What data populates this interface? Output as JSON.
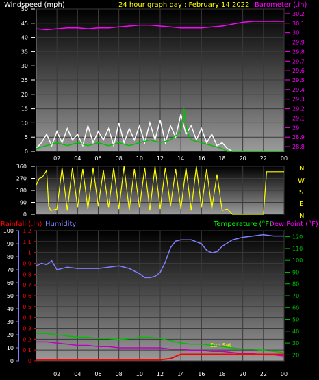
{
  "header": {
    "title": "24 hour graph day : February 14 2022",
    "left_label": "Windspeed (mph)",
    "right_label": "Barometer (.in)"
  },
  "panel2": {
    "compass": [
      "N",
      "W",
      "S",
      "E",
      "N"
    ]
  },
  "panel3": {
    "rainfall_label": "Rainfall (.in)",
    "humidity_label": "Humidity",
    "temp_label": "Temperature (°F)",
    "dew_label": "Dew Point (°F)",
    "sunset_label": "Sun Set"
  },
  "colors": {
    "wind": "#ffffff",
    "gust": "#00c000",
    "barometer": "#ff00ff",
    "direction": "#ffff00",
    "rain": "#ff0000",
    "humidity": "#8080ff",
    "temperature": "#00c000",
    "dewpoint": "#c000c0",
    "grid": "#3a3a3a"
  },
  "chart_data": [
    {
      "type": "line",
      "x_ticks": [
        "02",
        "04",
        "06",
        "08",
        "10",
        "12",
        "14",
        "16",
        "18",
        "20",
        "22",
        "00"
      ],
      "y_left_ticks": [
        "0",
        "5",
        "10",
        "15",
        "20",
        "25",
        "30",
        "35",
        "40",
        "45",
        "50"
      ],
      "y_left_lim": [
        0,
        50
      ],
      "y_right_ticks": [
        "28.8",
        "28.9",
        "29",
        "29.1",
        "29.2",
        "29.3",
        "29.4",
        "29.5",
        "29.6",
        "29.7",
        "29.8",
        "29.9",
        "30",
        "30.1",
        "30.2"
      ],
      "y_right_lim": [
        28.75,
        30.25
      ],
      "x_hours": [
        0,
        24
      ],
      "series": [
        {
          "name": "Windspeed (mph)",
          "axis": "left",
          "x": [
            0,
            0.5,
            1,
            1.5,
            2,
            2.5,
            3,
            3.5,
            4,
            4.5,
            5,
            5.5,
            6,
            6.5,
            7,
            7.5,
            8,
            8.5,
            9,
            9.5,
            10,
            10.5,
            11,
            11.5,
            12,
            12.5,
            13,
            13.5,
            14,
            14.5,
            15,
            15.5,
            16,
            16.5,
            17,
            17.5,
            18,
            18.5,
            19,
            20,
            21,
            22,
            23,
            24
          ],
          "y": [
            1,
            3,
            6,
            2,
            7,
            3,
            8,
            4,
            6,
            2,
            9,
            3,
            7,
            4,
            8,
            2,
            10,
            3,
            8,
            4,
            9,
            3,
            10,
            4,
            11,
            3,
            9,
            5,
            13,
            6,
            9,
            4,
            8,
            3,
            6,
            2,
            3,
            1,
            0,
            0,
            0,
            0,
            0,
            0
          ]
        },
        {
          "name": "Gust (mph)",
          "axis": "left",
          "x": [
            0,
            1,
            2,
            3,
            4,
            5,
            6,
            7,
            8,
            9,
            10,
            11,
            12,
            13,
            14,
            14.3,
            14.6,
            15,
            16,
            17,
            18,
            18.5,
            19,
            24
          ],
          "y": [
            1,
            2,
            3,
            2,
            3,
            2,
            3,
            2,
            3,
            2,
            3,
            4,
            3,
            4,
            7,
            15,
            7,
            4,
            3,
            2,
            1,
            0,
            0,
            0
          ]
        },
        {
          "name": "Barometer (.in)",
          "axis": "right",
          "x": [
            0,
            1,
            2,
            3,
            4,
            5,
            6,
            7,
            8,
            9,
            10,
            11,
            12,
            13,
            14,
            15,
            16,
            17,
            18,
            19,
            20,
            21,
            22,
            23,
            24
          ],
          "y": [
            30.04,
            30.03,
            30.04,
            30.05,
            30.05,
            30.04,
            30.05,
            30.05,
            30.06,
            30.07,
            30.08,
            30.08,
            30.07,
            30.06,
            30.05,
            30.05,
            30.05,
            30.06,
            30.07,
            30.09,
            30.11,
            30.12,
            30.12,
            30.12,
            30.12
          ]
        }
      ]
    },
    {
      "type": "line",
      "y_ticks": [
        "0",
        "90",
        "180",
        "270",
        "360"
      ],
      "y_lim": [
        0,
        360
      ],
      "x_hours": [
        0,
        24
      ],
      "series": [
        {
          "name": "Wind direction",
          "x": [
            0,
            0.3,
            0.6,
            1,
            1.2,
            1.4,
            2,
            2.5,
            3,
            3.5,
            4,
            4.5,
            5,
            5.5,
            6,
            6.5,
            7,
            7.5,
            8,
            8.5,
            9,
            9.5,
            10,
            10.5,
            11,
            11.5,
            12,
            12.5,
            13,
            13.5,
            14,
            14.5,
            15,
            15.5,
            16,
            16.5,
            17,
            17.5,
            18,
            18.5,
            19,
            20,
            21,
            22,
            22.3,
            23,
            24
          ],
          "y": [
            220,
            270,
            280,
            330,
            60,
            30,
            40,
            350,
            30,
            350,
            50,
            340,
            40,
            350,
            60,
            330,
            50,
            350,
            40,
            360,
            30,
            340,
            50,
            350,
            30,
            360,
            40,
            350,
            60,
            340,
            40,
            350,
            30,
            360,
            50,
            340,
            40,
            300,
            30,
            40,
            0,
            0,
            0,
            0,
            320,
            320,
            320
          ]
        }
      ]
    },
    {
      "type": "line",
      "y_humidity_ticks": [
        "0",
        "10",
        "20",
        "30",
        "40",
        "50",
        "60",
        "70",
        "80",
        "90",
        "100"
      ],
      "y_humidity_lim": [
        0,
        100
      ],
      "y_rain_ticks": [
        "0",
        "0.1",
        "0.2",
        "0.3",
        "0.4",
        "0.5",
        "0.6",
        "0.7",
        "0.8",
        "0.9",
        "1",
        "1.1",
        "1.2"
      ],
      "y_rain_lim": [
        0,
        1.2
      ],
      "y_temp_ticks": [
        "20",
        "30",
        "40",
        "50",
        "60",
        "70",
        "80",
        "90",
        "100",
        "110",
        "120"
      ],
      "y_temp_lim": [
        15,
        125
      ],
      "x_hours": [
        0,
        24
      ],
      "series": [
        {
          "name": "Humidity",
          "axis": "humidity",
          "x": [
            0,
            0.5,
            1,
            1.5,
            2,
            3,
            4,
            5,
            6,
            7,
            8,
            9,
            10,
            10.5,
            11,
            11.5,
            12,
            12.5,
            13,
            13.5,
            14,
            15,
            16,
            16.5,
            17,
            17.5,
            18,
            19,
            20,
            21,
            22,
            23,
            24
          ],
          "y": [
            73,
            75,
            74,
            77,
            70,
            72,
            71,
            71,
            71,
            72,
            73,
            71,
            67,
            64,
            64,
            65,
            68,
            76,
            87,
            92,
            93,
            93,
            90,
            85,
            83,
            84,
            88,
            93,
            95,
            96,
            97,
            96,
            96
          ]
        },
        {
          "name": "Temperature (°F)",
          "axis": "temp",
          "x": [
            0,
            1,
            2,
            3,
            4,
            5,
            6,
            7,
            8,
            9,
            10,
            11,
            12,
            13,
            14,
            15,
            16,
            17,
            18,
            19,
            20,
            21,
            22,
            23,
            24
          ],
          "y": [
            38,
            38,
            37,
            36,
            35,
            35,
            34,
            34,
            33,
            34,
            35,
            35,
            34,
            32,
            30,
            29,
            29,
            28,
            27,
            26,
            25,
            25,
            24,
            23,
            22
          ]
        },
        {
          "name": "Dew Point (°F)",
          "axis": "temp",
          "x": [
            0,
            1,
            2,
            3,
            4,
            5,
            6,
            7,
            8,
            9,
            10,
            11,
            12,
            13,
            14,
            15,
            16,
            17,
            18,
            19,
            20,
            21,
            22,
            23,
            24
          ],
          "y": [
            31,
            31,
            30,
            29,
            28,
            28,
            27,
            27,
            26,
            26,
            26,
            26,
            26,
            25,
            25,
            24,
            24,
            23,
            23,
            22,
            21,
            21,
            20,
            20,
            19
          ]
        },
        {
          "name": "Rainfall (.in)",
          "axis": "rain",
          "x": [
            0,
            1,
            2,
            3,
            4,
            5,
            6,
            7,
            8,
            9,
            10,
            11,
            12,
            13,
            13.5,
            14,
            15,
            16,
            17,
            18,
            19,
            20,
            21,
            22,
            23,
            24
          ],
          "y": [
            0.01,
            0.01,
            0.01,
            0.01,
            0.01,
            0.01,
            0.01,
            0.01,
            0.01,
            0.01,
            0.01,
            0.01,
            0.01,
            0.02,
            0.04,
            0.06,
            0.06,
            0.06,
            0.06,
            0.06,
            0.06,
            0.06,
            0.06,
            0.06,
            0.06,
            0.06
          ]
        }
      ],
      "markers": [
        {
          "x": 7.3,
          "label": ""
        },
        {
          "x": 18,
          "label": "Sun Set"
        }
      ]
    }
  ]
}
